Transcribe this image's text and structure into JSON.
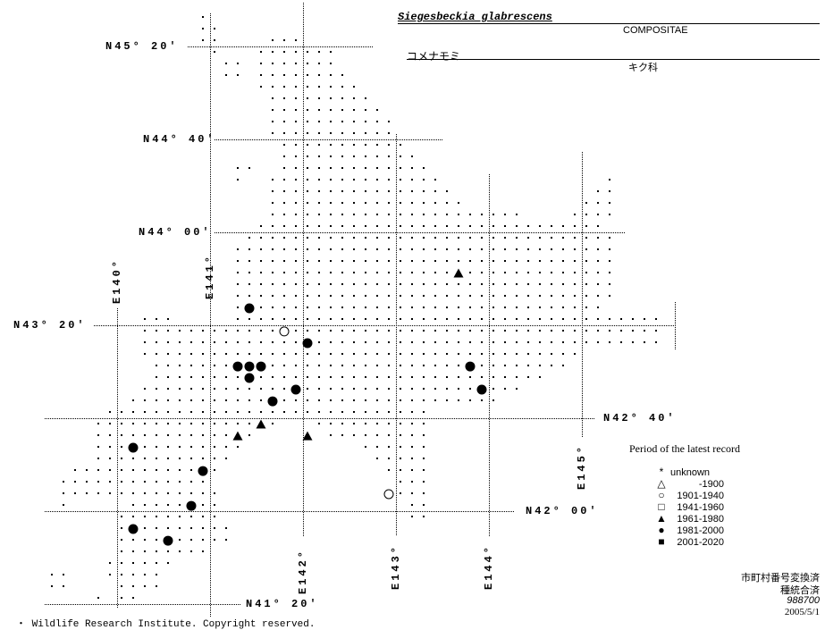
{
  "header": {
    "scientific_name": "Siegesbeckia glabrescens",
    "family": "COMPOSITAE",
    "japanese_name": "コメナモミ",
    "japanese_family": "キク科"
  },
  "grid_labels": {
    "lat": [
      "N45° 20′",
      "N44° 40′",
      "N44° 00′",
      "N43° 20′",
      "N42° 40′",
      "N42° 00′",
      "N41° 20′"
    ],
    "lon": [
      "E140°",
      "E141°",
      "E142°",
      "E143°",
      "E144°",
      "E145°"
    ]
  },
  "legend": {
    "title": "Period of the latest record",
    "items": [
      {
        "symbol": "asterisk",
        "glyph": "*",
        "label": "unknown"
      },
      {
        "symbol": "open-triangle",
        "glyph": "△",
        "label": "-1900"
      },
      {
        "symbol": "open-circle",
        "glyph": "○",
        "label": "1901-1940"
      },
      {
        "symbol": "open-square",
        "glyph": "□",
        "label": "1941-1960"
      },
      {
        "symbol": "filled-triangle",
        "glyph": "▲",
        "label": "1961-1980"
      },
      {
        "symbol": "filled-circle",
        "glyph": "●",
        "label": "1981-2000"
      },
      {
        "symbol": "filled-square",
        "glyph": "■",
        "label": "2001-2020"
      }
    ]
  },
  "meta": {
    "line1": "市町村番号変換済",
    "line2": "種統合済",
    "code": "988700",
    "date": "2005/5/1"
  },
  "footer": {
    "copyright": "・ Wildlife Research Institute. Copyright reserved."
  },
  "records": [
    {
      "symbol": "filled-circle",
      "lon": 141.423,
      "lat": 43.455
    },
    {
      "symbol": "open-circle",
      "lon": 141.798,
      "lat": 43.289
    },
    {
      "symbol": "filled-circle",
      "lon": 142.048,
      "lat": 43.205
    },
    {
      "symbol": "filled-circle",
      "lon": 141.298,
      "lat": 43.038
    },
    {
      "symbol": "filled-circle",
      "lon": 141.423,
      "lat": 43.038
    },
    {
      "symbol": "filled-circle",
      "lon": 141.548,
      "lat": 43.038
    },
    {
      "symbol": "filled-circle",
      "lon": 141.423,
      "lat": 42.955
    },
    {
      "symbol": "filled-circle",
      "lon": 141.923,
      "lat": 42.872
    },
    {
      "symbol": "filled-circle",
      "lon": 141.673,
      "lat": 42.788
    },
    {
      "symbol": "filled-circle",
      "lon": 143.798,
      "lat": 43.038
    },
    {
      "symbol": "filled-circle",
      "lon": 143.923,
      "lat": 42.872
    },
    {
      "symbol": "filled-circle",
      "lon": 140.173,
      "lat": 42.455
    },
    {
      "symbol": "filled-circle",
      "lon": 140.923,
      "lat": 42.288
    },
    {
      "symbol": "filled-circle",
      "lon": 140.798,
      "lat": 42.038
    },
    {
      "symbol": "filled-circle",
      "lon": 140.173,
      "lat": 41.872
    },
    {
      "symbol": "filled-circle",
      "lon": 140.548,
      "lat": 41.788
    },
    {
      "symbol": "open-circle",
      "lon": 142.923,
      "lat": 42.122
    },
    {
      "symbol": "filled-triangle",
      "lon": 143.673,
      "lat": 43.705
    },
    {
      "symbol": "filled-triangle",
      "lon": 141.548,
      "lat": 42.622
    },
    {
      "symbol": "filled-triangle",
      "lon": 141.298,
      "lat": 42.538
    },
    {
      "symbol": "filled-triangle",
      "lon": 142.048,
      "lat": 42.538
    }
  ]
}
